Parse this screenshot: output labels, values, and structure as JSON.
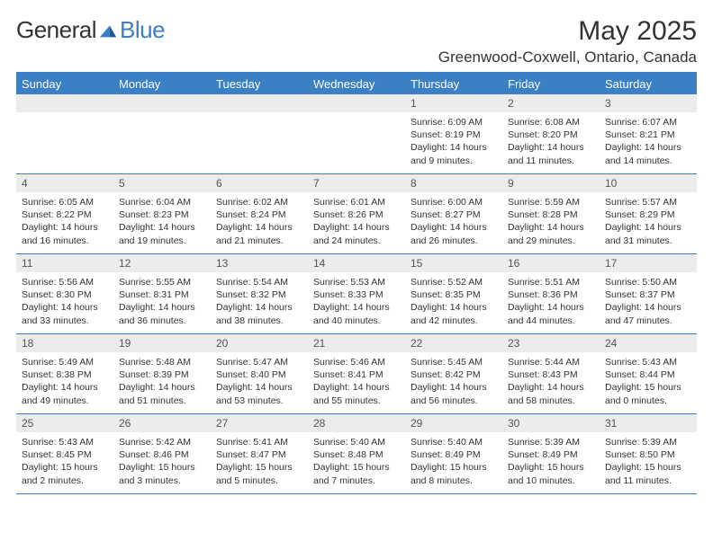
{
  "brand": {
    "word1": "General",
    "word2": "Blue",
    "word1_color": "#555555",
    "word2_color": "#3b7fc4"
  },
  "title": "May 2025",
  "location": "Greenwood-Coxwell, Ontario, Canada",
  "header_bg": "#3b7fc4",
  "header_text_color": "#ffffff",
  "daynum_bg": "#ececec",
  "border_color": "#3b7fc4",
  "weekdays": [
    "Sunday",
    "Monday",
    "Tuesday",
    "Wednesday",
    "Thursday",
    "Friday",
    "Saturday"
  ],
  "weeks": [
    [
      null,
      null,
      null,
      null,
      {
        "n": "1",
        "sr": "6:09 AM",
        "ss": "8:19 PM",
        "dl": "14 hours and 9 minutes."
      },
      {
        "n": "2",
        "sr": "6:08 AM",
        "ss": "8:20 PM",
        "dl": "14 hours and 11 minutes."
      },
      {
        "n": "3",
        "sr": "6:07 AM",
        "ss": "8:21 PM",
        "dl": "14 hours and 14 minutes."
      }
    ],
    [
      {
        "n": "4",
        "sr": "6:05 AM",
        "ss": "8:22 PM",
        "dl": "14 hours and 16 minutes."
      },
      {
        "n": "5",
        "sr": "6:04 AM",
        "ss": "8:23 PM",
        "dl": "14 hours and 19 minutes."
      },
      {
        "n": "6",
        "sr": "6:02 AM",
        "ss": "8:24 PM",
        "dl": "14 hours and 21 minutes."
      },
      {
        "n": "7",
        "sr": "6:01 AM",
        "ss": "8:26 PM",
        "dl": "14 hours and 24 minutes."
      },
      {
        "n": "8",
        "sr": "6:00 AM",
        "ss": "8:27 PM",
        "dl": "14 hours and 26 minutes."
      },
      {
        "n": "9",
        "sr": "5:59 AM",
        "ss": "8:28 PM",
        "dl": "14 hours and 29 minutes."
      },
      {
        "n": "10",
        "sr": "5:57 AM",
        "ss": "8:29 PM",
        "dl": "14 hours and 31 minutes."
      }
    ],
    [
      {
        "n": "11",
        "sr": "5:56 AM",
        "ss": "8:30 PM",
        "dl": "14 hours and 33 minutes."
      },
      {
        "n": "12",
        "sr": "5:55 AM",
        "ss": "8:31 PM",
        "dl": "14 hours and 36 minutes."
      },
      {
        "n": "13",
        "sr": "5:54 AM",
        "ss": "8:32 PM",
        "dl": "14 hours and 38 minutes."
      },
      {
        "n": "14",
        "sr": "5:53 AM",
        "ss": "8:33 PM",
        "dl": "14 hours and 40 minutes."
      },
      {
        "n": "15",
        "sr": "5:52 AM",
        "ss": "8:35 PM",
        "dl": "14 hours and 42 minutes."
      },
      {
        "n": "16",
        "sr": "5:51 AM",
        "ss": "8:36 PM",
        "dl": "14 hours and 44 minutes."
      },
      {
        "n": "17",
        "sr": "5:50 AM",
        "ss": "8:37 PM",
        "dl": "14 hours and 47 minutes."
      }
    ],
    [
      {
        "n": "18",
        "sr": "5:49 AM",
        "ss": "8:38 PM",
        "dl": "14 hours and 49 minutes."
      },
      {
        "n": "19",
        "sr": "5:48 AM",
        "ss": "8:39 PM",
        "dl": "14 hours and 51 minutes."
      },
      {
        "n": "20",
        "sr": "5:47 AM",
        "ss": "8:40 PM",
        "dl": "14 hours and 53 minutes."
      },
      {
        "n": "21",
        "sr": "5:46 AM",
        "ss": "8:41 PM",
        "dl": "14 hours and 55 minutes."
      },
      {
        "n": "22",
        "sr": "5:45 AM",
        "ss": "8:42 PM",
        "dl": "14 hours and 56 minutes."
      },
      {
        "n": "23",
        "sr": "5:44 AM",
        "ss": "8:43 PM",
        "dl": "14 hours and 58 minutes."
      },
      {
        "n": "24",
        "sr": "5:43 AM",
        "ss": "8:44 PM",
        "dl": "15 hours and 0 minutes."
      }
    ],
    [
      {
        "n": "25",
        "sr": "5:43 AM",
        "ss": "8:45 PM",
        "dl": "15 hours and 2 minutes."
      },
      {
        "n": "26",
        "sr": "5:42 AM",
        "ss": "8:46 PM",
        "dl": "15 hours and 3 minutes."
      },
      {
        "n": "27",
        "sr": "5:41 AM",
        "ss": "8:47 PM",
        "dl": "15 hours and 5 minutes."
      },
      {
        "n": "28",
        "sr": "5:40 AM",
        "ss": "8:48 PM",
        "dl": "15 hours and 7 minutes."
      },
      {
        "n": "29",
        "sr": "5:40 AM",
        "ss": "8:49 PM",
        "dl": "15 hours and 8 minutes."
      },
      {
        "n": "30",
        "sr": "5:39 AM",
        "ss": "8:49 PM",
        "dl": "15 hours and 10 minutes."
      },
      {
        "n": "31",
        "sr": "5:39 AM",
        "ss": "8:50 PM",
        "dl": "15 hours and 11 minutes."
      }
    ]
  ],
  "labels": {
    "sunrise": "Sunrise:",
    "sunset": "Sunset:",
    "daylight": "Daylight:"
  }
}
